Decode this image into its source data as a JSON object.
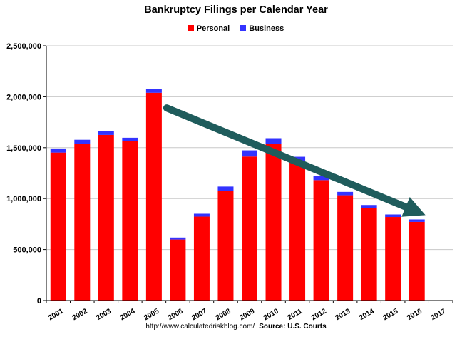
{
  "chart_data": {
    "type": "bar",
    "stacked": true,
    "title": "Bankruptcy Filings per Calendar Year",
    "xlabel": "",
    "ylabel": "",
    "categories": [
      "2001",
      "2002",
      "2003",
      "2004",
      "2005",
      "2006",
      "2007",
      "2008",
      "2009",
      "2010",
      "2011",
      "2012",
      "2013",
      "2014",
      "2015",
      "2016",
      "2017"
    ],
    "series": [
      {
        "name": "Personal",
        "color": "#ff0000",
        "values": [
          1452030,
          1539111,
          1625208,
          1563145,
          2039214,
          597965,
          822590,
          1074225,
          1412838,
          1536799,
          1362847,
          1181016,
          1032331,
          909812,
          819159,
          770846,
          null
        ]
      },
      {
        "name": "Business",
        "color": "#3333ff",
        "values": [
          40099,
          38540,
          35037,
          34317,
          39201,
          19695,
          28322,
          43546,
          60837,
          56282,
          47806,
          40075,
          33212,
          26983,
          24735,
          24114,
          null
        ]
      }
    ],
    "ylim": [
      0,
      2500000
    ],
    "yticks": [
      "0",
      "500,000",
      "1,000,000",
      "1,500,000",
      "2,000,000",
      "2,500,000"
    ],
    "ytick_values": [
      0,
      500000,
      1000000,
      1500000,
      2000000,
      2500000
    ],
    "grid": true,
    "legend_position": "top-center",
    "annotation": {
      "type": "arrow",
      "color": "#1f5c5c",
      "from": {
        "x": "2005",
        "y": 2100000
      },
      "to": {
        "x": "2016",
        "y": 880000
      }
    },
    "source_left": "http://www.calculatedriskblog.com/",
    "source_right": "Source: U.S. Courts"
  }
}
